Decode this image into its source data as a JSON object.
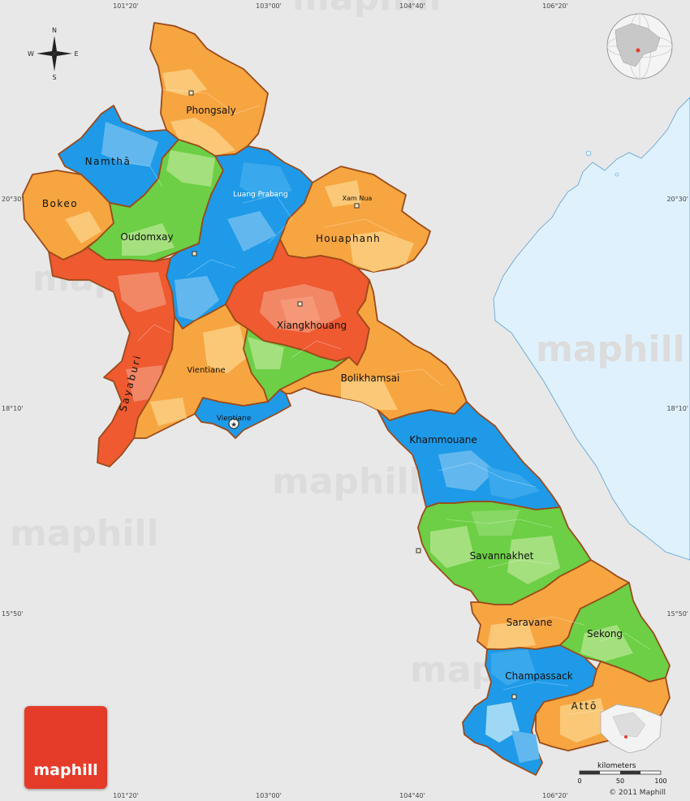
{
  "map": {
    "compass": {
      "n": "N",
      "s": "S",
      "e": "E",
      "w": "W"
    },
    "coords": {
      "top": [
        "101°20'",
        "103°00'",
        "104°40'",
        "106°20'"
      ],
      "bottom": [
        "101°20'",
        "103°00'",
        "104°40'",
        "106°20'"
      ],
      "left": [
        "20°30'",
        "18°10'",
        "15°50'"
      ],
      "right": [
        "20°30'",
        "18°10'",
        "15°50'"
      ]
    },
    "provinces": [
      "Phongsaly",
      "Namthā",
      "Bokeo",
      "Oudomxay",
      "Luang Prabang",
      "Houaphanh",
      "Sayaburi",
      "Xiangkhouang",
      "Vientiane",
      "Bolikhamsai",
      "Khammouane",
      "Savannakhet",
      "Saravane",
      "Sekong",
      "Champassack",
      "Attō"
    ],
    "cities": [
      "Xam Nua",
      "Vientiane"
    ],
    "watermark": "maphill",
    "scale": {
      "title": "kilometers",
      "ticks": [
        "0",
        "50",
        "100"
      ]
    },
    "logo": "maphill",
    "copyright": "© 2011 Maphill",
    "colors": {
      "background": "#e8e8e8",
      "sea": "#dff1fc",
      "border": "#9a4a1a",
      "orange": "#f7a540",
      "light_orange": "#fbc877",
      "blue": "#1e9ae8",
      "light_blue": "#62b8ee",
      "green": "#6ccf45",
      "light_green": "#a5e07f",
      "red": "#ef5a30",
      "salmon": "#f28766",
      "logo": "#e53c2a"
    }
  }
}
